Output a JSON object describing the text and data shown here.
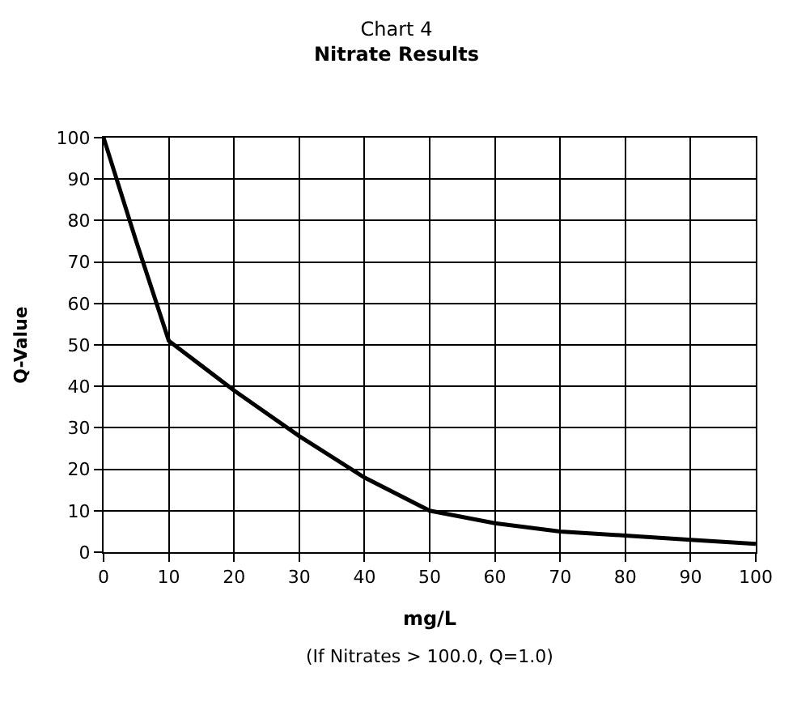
{
  "chart_data": {
    "type": "line",
    "title": "Chart 4",
    "subtitle": "Nitrate Results",
    "xlabel": "mg/L",
    "ylabel": "Q-Value",
    "x": [
      0,
      5,
      10,
      20,
      30,
      40,
      50,
      60,
      70,
      80,
      90,
      100
    ],
    "series": [
      {
        "color": "#000000",
        "values": [
          100,
          75,
          51,
          39,
          28,
          18,
          10,
          7,
          5,
          4,
          3,
          2
        ]
      }
    ],
    "xlim": [
      0,
      100
    ],
    "xticks": [
      0,
      10,
      20,
      30,
      40,
      50,
      60,
      70,
      80,
      90,
      100
    ],
    "ylim": [
      0,
      100
    ],
    "yticks": [
      0,
      10,
      20,
      30,
      40,
      50,
      60,
      70,
      80,
      90,
      100
    ],
    "grid": true,
    "marker": "none",
    "line_style": "solid",
    "annotations": [
      "(If Nitrates > 100.0, Q=1.0)"
    ]
  }
}
